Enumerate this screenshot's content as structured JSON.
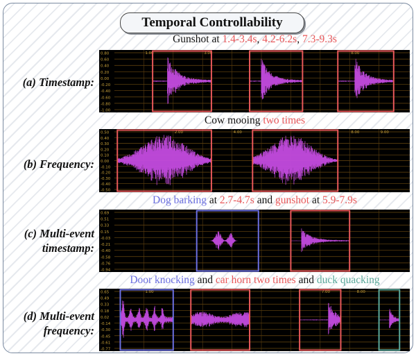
{
  "title": "Temporal Controllability",
  "rows": [
    {
      "label": "(a) Timestamp:",
      "caption": [
        {
          "text": "Gunshot at ",
          "color": "black"
        },
        {
          "text": "1.4-3.4s",
          "color": "red"
        },
        {
          "text": ", ",
          "color": "black"
        },
        {
          "text": "4.2-6.2s",
          "color": "red"
        },
        {
          "text": ", ",
          "color": "black"
        },
        {
          "text": "7.3-9.3s",
          "color": "red"
        }
      ],
      "yticks": [
        "0.80",
        "0.60",
        "0.40",
        "0.20",
        "0.00",
        "-0.20",
        "-0.40",
        "-0.60",
        "-0.80",
        "-1.00"
      ],
      "xticks": [
        {
          "label": "1.00",
          "t": 0.1
        },
        {
          "label": "3.00",
          "t": 0.3
        },
        {
          "label": "8.00",
          "t": 0.8
        }
      ],
      "boxes": [
        {
          "start": 0.13,
          "end": 0.33,
          "color": "#e8585a",
          "env": "decay",
          "amp": 0.95,
          "onset": 0.25
        },
        {
          "start": 0.46,
          "end": 0.64,
          "color": "#e8585a",
          "env": "decay",
          "amp": 0.9,
          "onset": 0.22
        },
        {
          "start": 0.76,
          "end": 0.95,
          "color": "#e8585a",
          "env": "decay",
          "amp": 0.92,
          "onset": 0.3
        }
      ]
    },
    {
      "label": "(b) Frequency:",
      "caption": [
        {
          "text": "Cow mooing ",
          "color": "black"
        },
        {
          "text": "two times",
          "color": "red"
        }
      ],
      "yticks": [
        "0.50",
        "0.40",
        "0.30",
        "0.20",
        "0.10",
        "0.00",
        "-0.10",
        "-0.20",
        "-0.30",
        "-0.40",
        "-0.50"
      ],
      "xticks": [
        {
          "label": "2.00",
          "t": 0.2
        },
        {
          "label": "4.00",
          "t": 0.4
        },
        {
          "label": "8.00",
          "t": 0.8
        },
        {
          "label": "9.00",
          "t": 0.9
        }
      ],
      "boxes": [
        {
          "start": 0.01,
          "end": 0.33,
          "color": "#e8585a",
          "env": "swell",
          "amp": 0.95,
          "onset": 0.5
        },
        {
          "start": 0.47,
          "end": 0.76,
          "color": "#e8585a",
          "env": "swell",
          "amp": 0.95,
          "onset": 0.45
        }
      ]
    },
    {
      "label": "(c) Multi-event\ntimestamp:",
      "caption": [
        {
          "text": "Dog barking",
          "color": "blue"
        },
        {
          "text": " at ",
          "color": "black"
        },
        {
          "text": "2.7-4.7s",
          "color": "red"
        },
        {
          "text": " and ",
          "color": "black"
        },
        {
          "text": "gunshot",
          "color": "red"
        },
        {
          "text": " at ",
          "color": "black"
        },
        {
          "text": "5.9-7.9s",
          "color": "red"
        }
      ],
      "yticks": [
        "0.69",
        "0.51",
        "0.33",
        "0.15",
        "-0.03",
        "-0.21",
        "-0.40",
        "-0.58",
        "-0.76",
        "-0.94"
      ],
      "xticks": [],
      "boxes": [
        {
          "start": 0.28,
          "end": 0.49,
          "color": "#6b6fe0",
          "env": "barks",
          "amp": 0.35,
          "onset": 0.4
        },
        {
          "start": 0.6,
          "end": 0.8,
          "color": "#e8585a",
          "env": "decay",
          "amp": 0.45,
          "onset": 0.18
        }
      ]
    },
    {
      "label": "(d) Multi-event\nfrequency:",
      "caption": [
        {
          "text": "Door knocking",
          "color": "blue"
        },
        {
          "text": " and ",
          "color": "black"
        },
        {
          "text": "car horn two times",
          "color": "red"
        },
        {
          "text": " and ",
          "color": "black"
        },
        {
          "text": "duck quacking",
          "color": "teal"
        }
      ],
      "yticks": [
        "0.65",
        "0.49",
        "0.33",
        "0.18",
        "0.02",
        "-0.14",
        "-0.30",
        "-0.45",
        "-0.61",
        "-0.77"
      ],
      "xticks": [
        {
          "label": "1.00",
          "t": 0.1
        },
        {
          "label": "7.00",
          "t": 0.7
        },
        {
          "label": "8.00",
          "t": 0.82
        }
      ],
      "boxes": [
        {
          "start": 0.02,
          "end": 0.2,
          "color": "#6b6fe0",
          "env": "knocks",
          "amp": 0.7,
          "onset": 0.1
        },
        {
          "start": 0.26,
          "end": 0.46,
          "color": "#e8585a",
          "env": "flat",
          "amp": 0.3,
          "onset": 0.05
        },
        {
          "start": 0.63,
          "end": 0.77,
          "color": "#e8585a",
          "env": "decay",
          "amp": 0.75,
          "onset": 0.7
        },
        {
          "start": 0.9,
          "end": 0.97,
          "color": "#5aa89a",
          "env": "decay",
          "amp": 0.55,
          "onset": 0.5
        }
      ]
    }
  ]
}
